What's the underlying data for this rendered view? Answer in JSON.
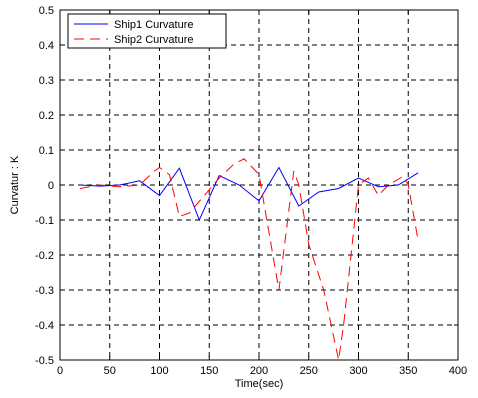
{
  "chart_data": {
    "type": "line",
    "xlabel": "Time(sec)",
    "ylabel": "Curvatur : K",
    "xlim": [
      0,
      400
    ],
    "ylim": [
      -0.5,
      0.5
    ],
    "grid": true,
    "legend_position": "top-left",
    "x_ticks": [
      "0",
      "50",
      "100",
      "150",
      "200",
      "250",
      "300",
      "350",
      "400"
    ],
    "y_ticks": [
      "0.5",
      "0.4",
      "0.3",
      "0.2",
      "0.1",
      "0",
      "-0.1",
      "-0.2",
      "-0.3",
      "-0.4",
      "-0.5"
    ],
    "series": [
      {
        "name": "Ship1 Curvature",
        "color": "#0000ff",
        "style": "solid",
        "x": [
          20,
          40,
          60,
          80,
          100,
          120,
          140,
          160,
          180,
          200,
          220,
          240,
          260,
          280,
          300,
          320,
          340,
          360
        ],
        "y": [
          0.0,
          -0.003,
          0.0,
          0.012,
          -0.03,
          0.048,
          -0.1,
          0.027,
          0.0,
          -0.045,
          0.05,
          -0.06,
          -0.02,
          -0.01,
          0.02,
          -0.005,
          0.0,
          0.035
        ]
      },
      {
        "name": "Ship2 Curvature",
        "color": "#ff0000",
        "style": "dashed",
        "x": [
          20,
          40,
          60,
          80,
          95,
          100,
          110,
          120,
          130,
          145,
          160,
          175,
          185,
          200,
          220,
          235,
          240,
          250,
          265,
          280,
          285,
          300,
          310,
          320,
          330,
          345,
          350,
          360
        ],
        "y": [
          -0.01,
          0.0,
          -0.005,
          0.0,
          0.04,
          0.05,
          0.03,
          -0.09,
          -0.08,
          -0.03,
          0.02,
          0.06,
          0.075,
          0.03,
          -0.3,
          0.04,
          0.0,
          -0.17,
          -0.3,
          -0.5,
          -0.4,
          0.0,
          0.02,
          -0.03,
          0.0,
          0.025,
          0.0,
          -0.16
        ]
      }
    ]
  }
}
